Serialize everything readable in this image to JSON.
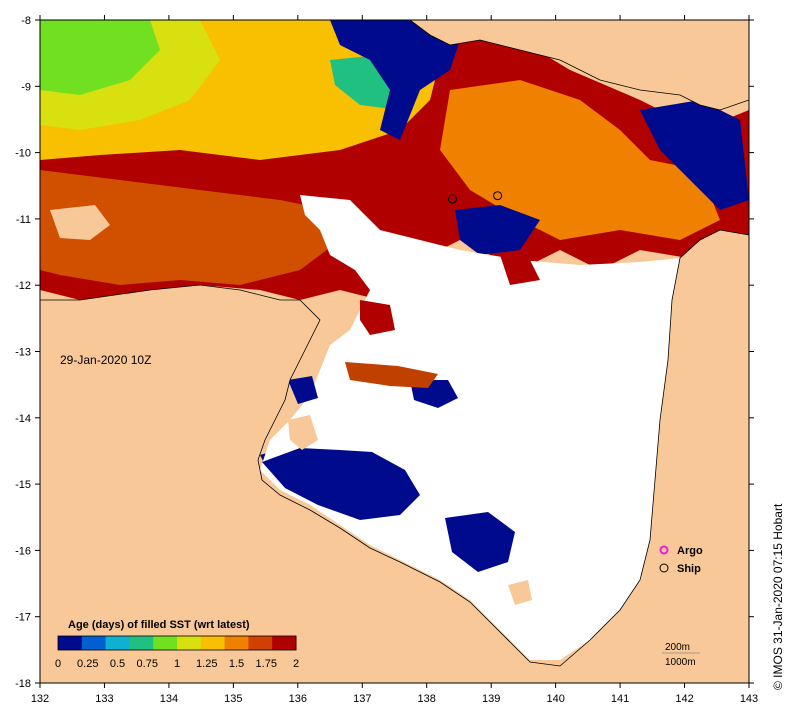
{
  "map": {
    "date_label": "29-Jan-2020 10Z",
    "credit": "© IMOS 31-Jan-2020 07:15 Hobart",
    "x_ticks": [
      "132",
      "133",
      "134",
      "135",
      "136",
      "137",
      "138",
      "139",
      "140",
      "141",
      "142",
      "143"
    ],
    "y_ticks": [
      "-8",
      "-9",
      "-10",
      "-11",
      "-12",
      "-13",
      "-14",
      "-15",
      "-16",
      "-17",
      "-18"
    ],
    "lon_range": [
      132,
      143
    ],
    "lat_range": [
      -18,
      -8
    ],
    "legend": {
      "argo_label": "Argo",
      "ship_label": "Ship",
      "argo_color": "#e020e0",
      "ship_color": "#000000"
    },
    "colorbar": {
      "title": "Age (days) of filled SST (wrt latest)",
      "ticks": [
        "0",
        "0.25",
        "0.5",
        "0.75",
        "1",
        "1.25",
        "1.5",
        "1.75",
        "2"
      ],
      "colors": [
        "#000a8c",
        "#0060d0",
        "#10b0d0",
        "#20c080",
        "#70e020",
        "#d8e010",
        "#f8c000",
        "#f08000",
        "#d04000",
        "#b00000"
      ]
    },
    "scale": {
      "depth1": "200m",
      "depth2": "1000m"
    },
    "colors": {
      "land": "#f8c898",
      "sea": "#ffffff",
      "ship_marker": "#000000"
    },
    "ships": [
      {
        "lon": 138.4,
        "lat": -10.7
      },
      {
        "lon": 139.1,
        "lat": -10.65
      }
    ]
  }
}
